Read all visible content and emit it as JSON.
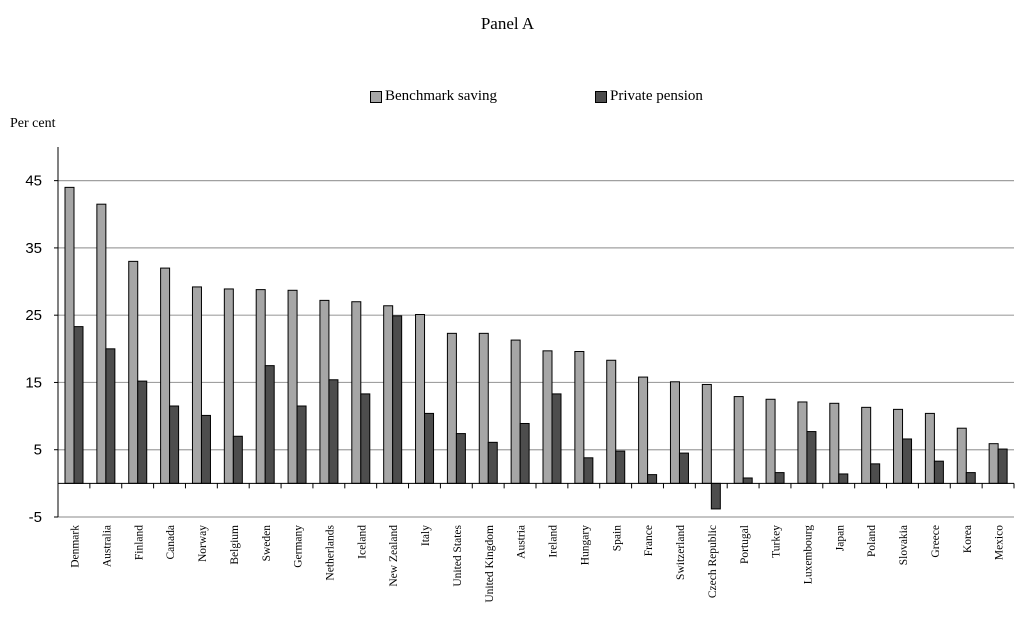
{
  "chart_data": {
    "type": "bar",
    "title": "Panel A",
    "ylabel": "Per cent",
    "xlabel": "",
    "ylim": [
      -5,
      50
    ],
    "yticks": [
      -5,
      5,
      15,
      25,
      35,
      45
    ],
    "grid": true,
    "legend_position": "top",
    "categories": [
      "Denmark",
      "Australia",
      "Finland",
      "Canada",
      "Norway",
      "Belgium",
      "Sweden",
      "Germany",
      "Netherlands",
      "Iceland",
      "New Zealand",
      "Italy",
      "United States",
      "United Kingdom",
      "Austria",
      "Ireland",
      "Hungary",
      "Spain",
      "France",
      "Switzerland",
      "Czech Republic",
      "Portugal",
      "Turkey",
      "Luxembourg",
      "Japan",
      "Poland",
      "Slovakia",
      "Greece",
      "Korea",
      "Mexico"
    ],
    "series": [
      {
        "name": "Benchmark saving",
        "color": "#a6a6a6",
        "values": [
          44.0,
          41.5,
          33.0,
          32.0,
          29.2,
          28.9,
          28.8,
          28.7,
          27.2,
          27.0,
          26.4,
          25.1,
          22.3,
          22.3,
          21.3,
          19.7,
          19.6,
          18.3,
          15.8,
          15.1,
          14.7,
          12.9,
          12.5,
          12.1,
          11.9,
          11.3,
          11.0,
          10.4,
          8.2,
          5.9
        ]
      },
      {
        "name": "Private pension",
        "color": "#4d4d4d",
        "values": [
          23.3,
          20.0,
          15.2,
          11.5,
          10.1,
          7.0,
          17.5,
          11.5,
          15.4,
          13.3,
          24.9,
          10.4,
          7.4,
          6.1,
          8.9,
          13.3,
          3.8,
          4.8,
          1.3,
          4.5,
          -3.8,
          0.8,
          1.6,
          7.7,
          1.4,
          2.9,
          6.6,
          3.3,
          1.6,
          5.1
        ]
      }
    ]
  }
}
